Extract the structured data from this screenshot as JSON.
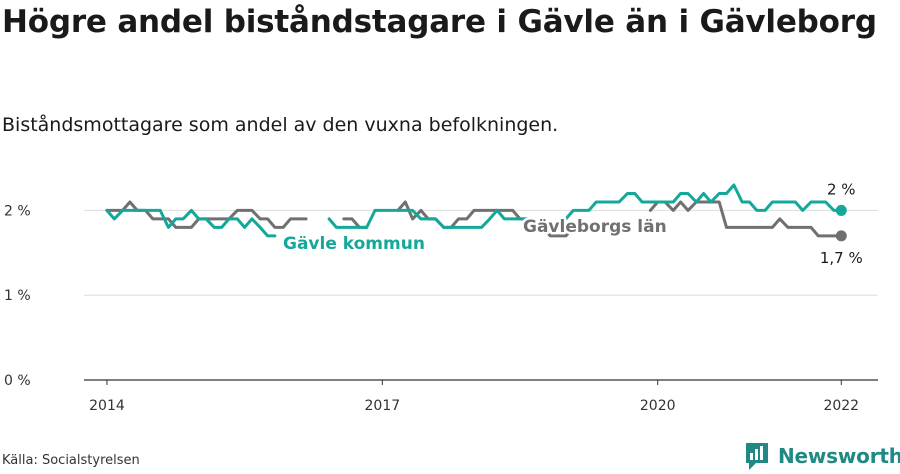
{
  "header": {
    "title": "Högre andel biståndstagare i Gävle än i Gävleborg",
    "subtitle": "Biståndsmottagare som andel av den vuxna befolkningen."
  },
  "footer": {
    "source": "Källa: Socialstyrelsen",
    "brand": "Newsworthy"
  },
  "colors": {
    "gavle": "#14a89a",
    "lan": "#707070",
    "axis": "#333333",
    "grid": "#dddddd",
    "brand": "#1f8a83"
  },
  "icons": {
    "logo": "newsworthy-bar-logo-icon"
  },
  "chart_data": {
    "type": "line",
    "title": "Högre andel biståndstagare i Gävle än i Gävleborg",
    "subtitle": "Biståndsmottagare som andel av den vuxna befolkningen.",
    "xlabel": "",
    "ylabel": "",
    "x_unit": "year",
    "xlim": [
      2013.75,
      2022.4
    ],
    "ylim": [
      0,
      2.3
    ],
    "x_ticks": [
      {
        "value": 2014,
        "label": "2014"
      },
      {
        "value": 2017,
        "label": "2017"
      },
      {
        "value": 2020,
        "label": "2020"
      },
      {
        "value": 2022,
        "label": "2022"
      }
    ],
    "y_ticks": [
      {
        "value": 0,
        "label": "0 %"
      },
      {
        "value": 1,
        "label": "1 %"
      },
      {
        "value": 2,
        "label": "2 %"
      }
    ],
    "grid": true,
    "legend": "inline labels",
    "series": [
      {
        "name": "Gävle kommun",
        "color": "#14a89a",
        "end_label": "2 %",
        "points": [
          [
            2014.0,
            2.0
          ],
          [
            2014.08,
            1.9
          ],
          [
            2014.17,
            2.0
          ],
          [
            2014.25,
            2.0
          ],
          [
            2014.33,
            2.0
          ],
          [
            2014.42,
            2.0
          ],
          [
            2014.5,
            2.0
          ],
          [
            2014.58,
            2.0
          ],
          [
            2014.67,
            1.8
          ],
          [
            2014.75,
            1.9
          ],
          [
            2014.83,
            1.9
          ],
          [
            2014.92,
            2.0
          ],
          [
            2015.0,
            1.9
          ],
          [
            2015.08,
            1.9
          ],
          [
            2015.17,
            1.8
          ],
          [
            2015.25,
            1.8
          ],
          [
            2015.33,
            1.9
          ],
          [
            2015.42,
            1.9
          ],
          [
            2015.5,
            1.8
          ],
          [
            2015.58,
            1.9
          ],
          [
            2015.67,
            1.8
          ],
          [
            2015.75,
            1.7
          ],
          [
            2015.83,
            1.7
          ],
          [
            2016.42,
            1.9
          ],
          [
            2016.5,
            1.8
          ],
          [
            2016.58,
            1.8
          ],
          [
            2016.67,
            1.8
          ],
          [
            2016.75,
            1.8
          ],
          [
            2016.83,
            1.8
          ],
          [
            2016.92,
            2.0
          ],
          [
            2017.0,
            2.0
          ],
          [
            2017.08,
            2.0
          ],
          [
            2017.17,
            2.0
          ],
          [
            2017.25,
            2.0
          ],
          [
            2017.33,
            2.0
          ],
          [
            2017.42,
            1.9
          ],
          [
            2017.5,
            1.9
          ],
          [
            2017.58,
            1.9
          ],
          [
            2017.67,
            1.8
          ],
          [
            2017.75,
            1.8
          ],
          [
            2017.83,
            1.8
          ],
          [
            2017.92,
            1.8
          ],
          [
            2018.0,
            1.8
          ],
          [
            2018.08,
            1.8
          ],
          [
            2018.17,
            1.9
          ],
          [
            2018.25,
            2.0
          ],
          [
            2018.33,
            1.9
          ],
          [
            2018.42,
            1.9
          ],
          [
            2018.5,
            1.9
          ],
          [
            2018.58,
            1.9
          ],
          [
            2018.67,
            1.8
          ],
          [
            2018.75,
            1.8
          ],
          [
            2018.83,
            1.8
          ],
          [
            2018.92,
            1.8
          ],
          [
            2019.0,
            1.9
          ],
          [
            2019.08,
            2.0
          ],
          [
            2019.17,
            2.0
          ],
          [
            2019.25,
            2.0
          ],
          [
            2019.33,
            2.1
          ],
          [
            2019.42,
            2.1
          ],
          [
            2019.5,
            2.1
          ],
          [
            2019.58,
            2.1
          ],
          [
            2019.67,
            2.2
          ],
          [
            2019.75,
            2.2
          ],
          [
            2019.83,
            2.1
          ],
          [
            2019.92,
            2.1
          ],
          [
            2020.0,
            2.1
          ],
          [
            2020.08,
            2.1
          ],
          [
            2020.17,
            2.1
          ],
          [
            2020.25,
            2.2
          ],
          [
            2020.33,
            2.2
          ],
          [
            2020.42,
            2.1
          ],
          [
            2020.5,
            2.2
          ],
          [
            2020.58,
            2.1
          ],
          [
            2020.67,
            2.2
          ],
          [
            2020.75,
            2.2
          ],
          [
            2020.83,
            2.3
          ],
          [
            2020.92,
            2.1
          ],
          [
            2021.0,
            2.1
          ],
          [
            2021.08,
            2.0
          ],
          [
            2021.17,
            2.0
          ],
          [
            2021.25,
            2.1
          ],
          [
            2021.33,
            2.1
          ],
          [
            2021.42,
            2.1
          ],
          [
            2021.5,
            2.1
          ],
          [
            2021.58,
            2.0
          ],
          [
            2021.67,
            2.1
          ],
          [
            2021.75,
            2.1
          ],
          [
            2021.83,
            2.1
          ],
          [
            2021.92,
            2.0
          ],
          [
            2022.0,
            2.0
          ]
        ]
      },
      {
        "name": "Gävleborgs län",
        "color": "#707070",
        "end_label": "1,7 %",
        "points": [
          [
            2014.0,
            2.0
          ],
          [
            2014.08,
            2.0
          ],
          [
            2014.17,
            2.0
          ],
          [
            2014.25,
            2.1
          ],
          [
            2014.33,
            2.0
          ],
          [
            2014.42,
            2.0
          ],
          [
            2014.5,
            1.9
          ],
          [
            2014.58,
            1.9
          ],
          [
            2014.67,
            1.9
          ],
          [
            2014.75,
            1.8
          ],
          [
            2014.83,
            1.8
          ],
          [
            2014.92,
            1.8
          ],
          [
            2015.0,
            1.9
          ],
          [
            2015.08,
            1.9
          ],
          [
            2015.17,
            1.9
          ],
          [
            2015.25,
            1.9
          ],
          [
            2015.33,
            1.9
          ],
          [
            2015.42,
            2.0
          ],
          [
            2015.5,
            2.0
          ],
          [
            2015.58,
            2.0
          ],
          [
            2015.67,
            1.9
          ],
          [
            2015.75,
            1.9
          ],
          [
            2015.83,
            1.8
          ],
          [
            2015.92,
            1.8
          ],
          [
            2016.0,
            1.9
          ],
          [
            2016.08,
            1.9
          ],
          [
            2016.17,
            1.9
          ],
          [
            2016.58,
            1.9
          ],
          [
            2016.67,
            1.9
          ],
          [
            2016.75,
            1.8
          ],
          [
            2016.83,
            1.8
          ],
          [
            2017.17,
            2.0
          ],
          [
            2017.25,
            2.1
          ],
          [
            2017.33,
            1.9
          ],
          [
            2017.42,
            2.0
          ],
          [
            2017.5,
            1.9
          ],
          [
            2017.58,
            1.9
          ],
          [
            2017.67,
            1.8
          ],
          [
            2017.75,
            1.8
          ],
          [
            2017.83,
            1.9
          ],
          [
            2017.92,
            1.9
          ],
          [
            2018.0,
            2.0
          ],
          [
            2018.08,
            2.0
          ],
          [
            2018.17,
            2.0
          ],
          [
            2018.25,
            2.0
          ],
          [
            2018.33,
            2.0
          ],
          [
            2018.42,
            2.0
          ],
          [
            2018.5,
            1.9
          ],
          [
            2018.58,
            1.9
          ],
          [
            2018.67,
            1.8
          ],
          [
            2018.75,
            1.8
          ],
          [
            2018.83,
            1.7
          ],
          [
            2018.92,
            1.7
          ],
          [
            2019.0,
            1.7
          ],
          [
            2019.08,
            1.8
          ],
          [
            2019.92,
            2.0
          ],
          [
            2020.0,
            2.1
          ],
          [
            2020.08,
            2.1
          ],
          [
            2020.17,
            2.0
          ],
          [
            2020.25,
            2.1
          ],
          [
            2020.33,
            2.0
          ],
          [
            2020.42,
            2.1
          ],
          [
            2020.5,
            2.1
          ],
          [
            2020.58,
            2.1
          ],
          [
            2020.67,
            2.1
          ],
          [
            2020.75,
            1.8
          ],
          [
            2020.83,
            1.8
          ],
          [
            2020.92,
            1.8
          ],
          [
            2021.0,
            1.8
          ],
          [
            2021.08,
            1.8
          ],
          [
            2021.17,
            1.8
          ],
          [
            2021.25,
            1.8
          ],
          [
            2021.33,
            1.9
          ],
          [
            2021.42,
            1.8
          ],
          [
            2021.5,
            1.8
          ],
          [
            2021.58,
            1.8
          ],
          [
            2021.67,
            1.8
          ],
          [
            2021.75,
            1.7
          ],
          [
            2021.83,
            1.7
          ],
          [
            2021.92,
            1.7
          ],
          [
            2022.0,
            1.7
          ]
        ]
      }
    ]
  }
}
